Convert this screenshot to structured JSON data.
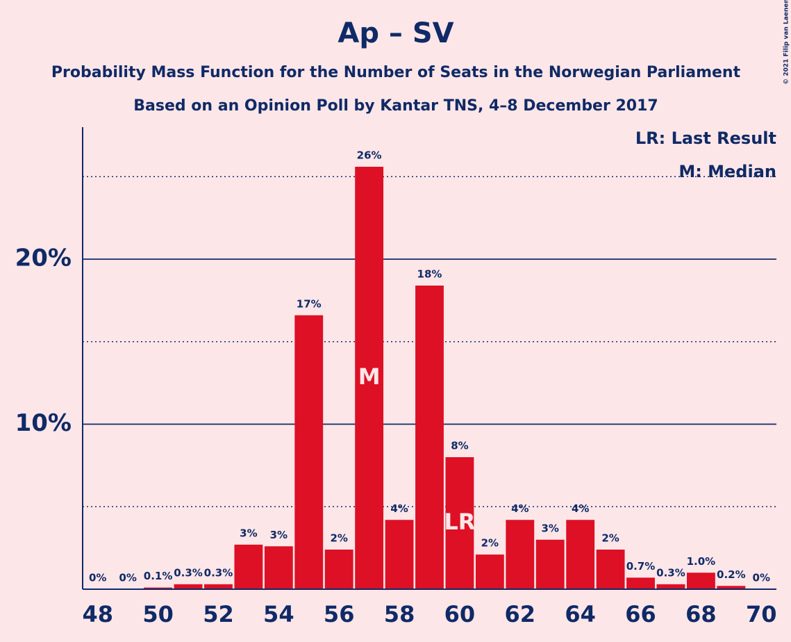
{
  "chart_data": {
    "type": "bar",
    "title": "Ap – SV",
    "subtitle": [
      "Probability Mass Function for the Number of Seats in the Norwegian Parliament",
      "Based on an Opinion Poll by Kantar TNS, 4–8 December 2017"
    ],
    "x": [
      48,
      49,
      50,
      51,
      52,
      53,
      54,
      55,
      56,
      57,
      58,
      59,
      60,
      61,
      62,
      63,
      64,
      65,
      66,
      67,
      68,
      69,
      70
    ],
    "values": [
      0,
      0,
      0.1,
      0.3,
      0.3,
      2.7,
      2.6,
      16.6,
      2.4,
      25.6,
      4.2,
      18.4,
      8.0,
      2.1,
      4.2,
      3.0,
      4.2,
      2.4,
      0.7,
      0.3,
      1.0,
      0.2,
      0
    ],
    "value_labels": [
      "0%",
      "0%",
      "0.1%",
      "0.3%",
      "0.3%",
      "3%",
      "3%",
      "17%",
      "2%",
      "26%",
      "4%",
      "18%",
      "8%",
      "2%",
      "4%",
      "3%",
      "4%",
      "2%",
      "0.7%",
      "0.3%",
      "1.0%",
      "0.2%",
      "0%"
    ],
    "color": "#dd1025",
    "xlim": [
      47.5,
      70.5
    ],
    "xticks": [
      48,
      50,
      52,
      54,
      56,
      58,
      60,
      62,
      64,
      66,
      68,
      70
    ],
    "ylim": [
      0,
      28
    ],
    "yticks": [
      {
        "value": 10,
        "label": "10%"
      },
      {
        "value": 20,
        "label": "20%"
      }
    ],
    "minor_yticks": [
      5,
      15,
      25
    ],
    "annotations": [
      {
        "label": "M",
        "x": 57
      },
      {
        "label": "LR",
        "x": 60
      }
    ],
    "legend": [
      "LR: Last Result",
      "M: Median"
    ],
    "credit": "© 2021 Filip van Laenen"
  }
}
